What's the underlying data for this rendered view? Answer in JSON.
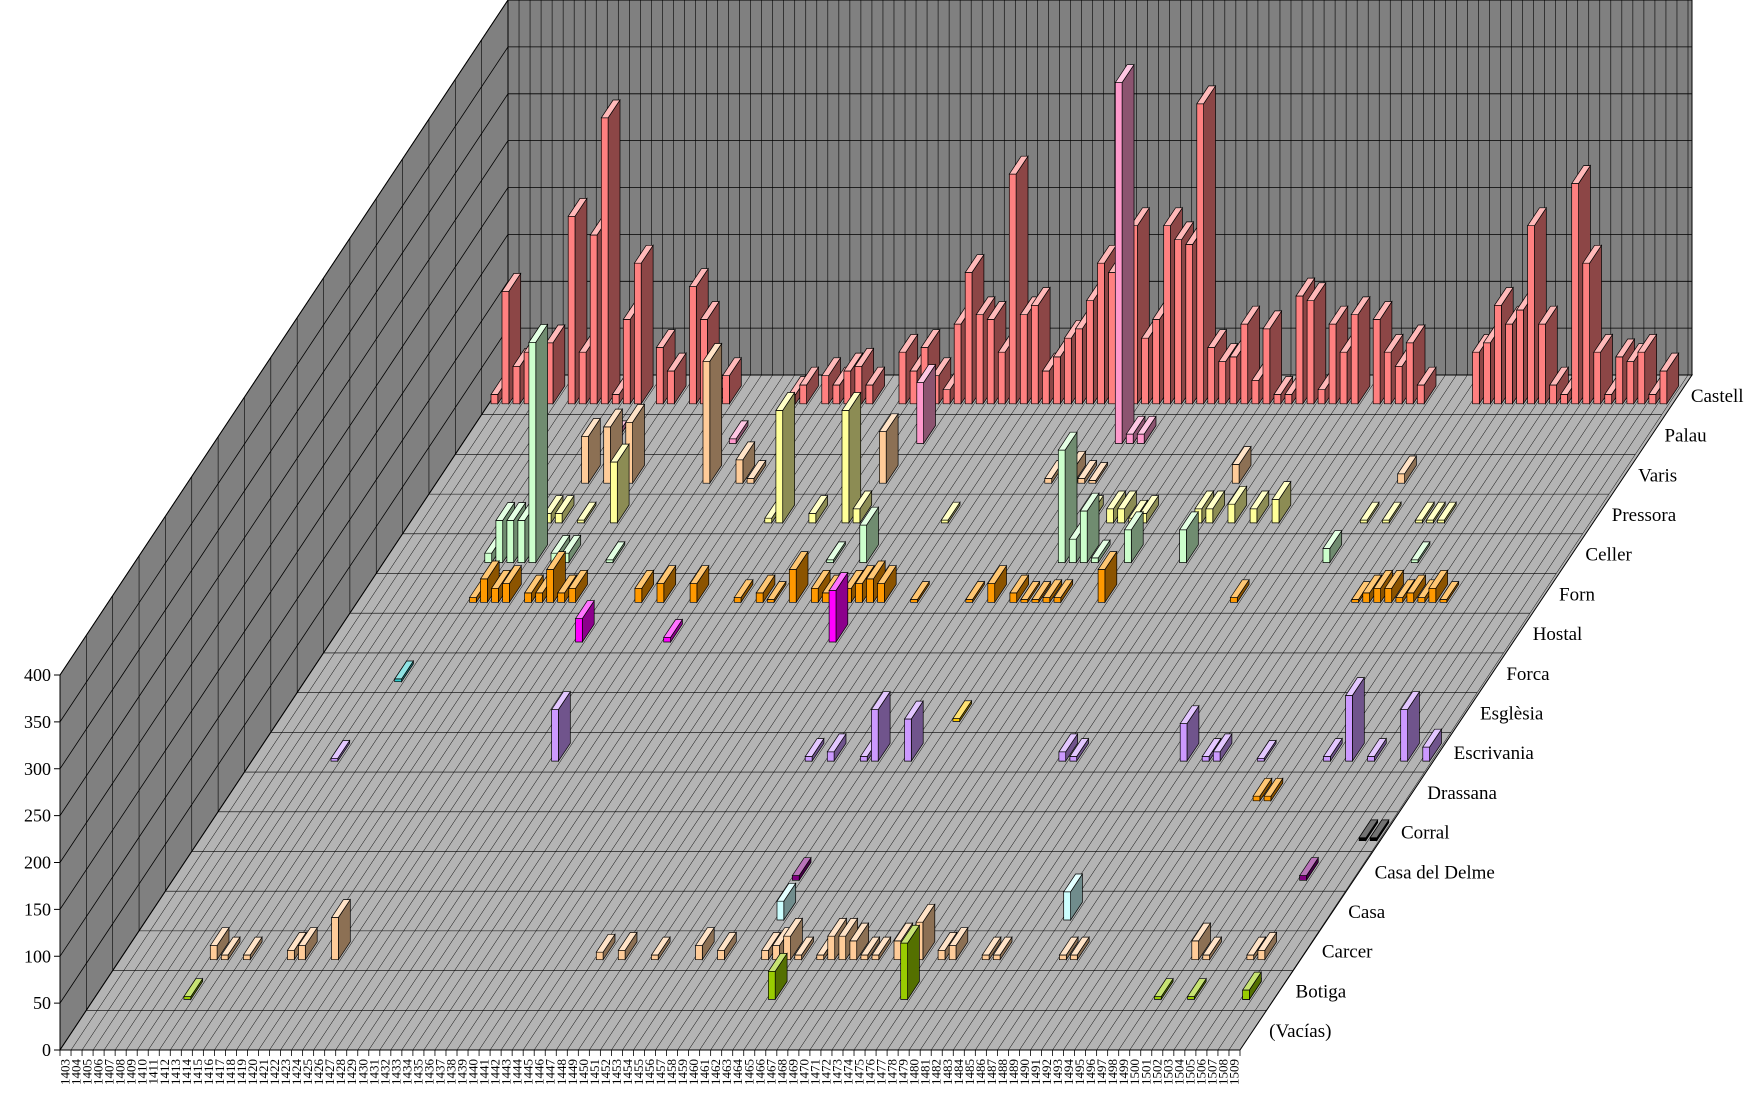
{
  "chart_data": {
    "type": "bar",
    "subtype": "3d-column",
    "title": "",
    "xlabel": "",
    "ylabel": "",
    "ylim": [
      0,
      400
    ],
    "yticks": [
      0,
      50,
      100,
      150,
      200,
      250,
      300,
      350,
      400
    ],
    "grid": true,
    "legend": "none",
    "x_start": 1403,
    "x_end": 1509,
    "x_tick_labels": [
      "1403",
      "1404",
      "1405",
      "1406",
      "1407",
      "1408",
      "1409",
      "1410",
      "1411",
      "1412",
      "1413",
      "1414",
      "1415",
      "1416",
      "1417",
      "1418",
      "1419",
      "1420",
      "1421",
      "1422",
      "1423",
      "1424",
      "1425",
      "1426",
      "1427",
      "1428",
      "1429",
      "1430",
      "1431",
      "1432",
      "1433",
      "1434",
      "1435",
      "1436",
      "1437",
      "1438",
      "1439",
      "1440",
      "1441",
      "1442",
      "1443",
      "1444",
      "1445",
      "1446",
      "1447",
      "1448",
      "1449",
      "1450",
      "1451",
      "1452",
      "1453",
      "1454",
      "1455",
      "1456",
      "1457",
      "1458",
      "1459",
      "1460",
      "1461",
      "1462",
      "1463",
      "1464",
      "1465",
      "1466",
      "1467",
      "1468",
      "1469",
      "1470",
      "1471",
      "1472",
      "1473",
      "1474",
      "1475",
      "1476",
      "1477",
      "1478",
      "1479",
      "1480",
      "1481",
      "1482",
      "1483",
      "1484",
      "1485",
      "1486",
      "1487",
      "1488",
      "1489",
      "1490",
      "1491",
      "1492",
      "1493",
      "1494",
      "1495",
      "1496",
      "1497",
      "1498",
      "1499",
      "1500",
      "1501",
      "1502",
      "1503",
      "1504",
      "1505",
      "1506",
      "1507",
      "1508",
      "1509"
    ],
    "series": [
      {
        "name": "(Vacías)",
        "color": "#c0c0c0",
        "points": []
      },
      {
        "name": "Botiga",
        "color": "#99cc00",
        "points": [
          [
            1411,
            3
          ],
          [
            1464,
            30
          ],
          [
            1476,
            60
          ],
          [
            1499,
            3
          ],
          [
            1502,
            3
          ],
          [
            1507,
            3
          ],
          [
            1507,
            10
          ]
        ]
      },
      {
        "name": "Carcer",
        "color": "#ffcc99",
        "points": [
          [
            1411,
            15
          ],
          [
            1412,
            5
          ],
          [
            1414,
            5
          ],
          [
            1418,
            10
          ],
          [
            1419,
            15
          ],
          [
            1422,
            45
          ],
          [
            1446,
            8
          ],
          [
            1448,
            10
          ],
          [
            1451,
            5
          ],
          [
            1455,
            15
          ],
          [
            1457,
            10
          ],
          [
            1461,
            10
          ],
          [
            1462,
            15
          ],
          [
            1463,
            25
          ],
          [
            1464,
            5
          ],
          [
            1466,
            5
          ],
          [
            1467,
            25
          ],
          [
            1468,
            25
          ],
          [
            1469,
            20
          ],
          [
            1470,
            5
          ],
          [
            1471,
            5
          ],
          [
            1473,
            20
          ],
          [
            1474,
            15
          ],
          [
            1475,
            40
          ],
          [
            1477,
            10
          ],
          [
            1478,
            15
          ],
          [
            1481,
            5
          ],
          [
            1482,
            5
          ],
          [
            1488,
            5
          ],
          [
            1489,
            5
          ],
          [
            1500,
            20
          ],
          [
            1501,
            5
          ],
          [
            1505,
            5
          ],
          [
            1506,
            10
          ]
        ]
      },
      {
        "name": "Casa",
        "color": "#ccffff",
        "points": [
          [
            1460,
            20
          ],
          [
            1486,
            30
          ]
        ]
      },
      {
        "name": "Casa del Delme",
        "color": "#800080",
        "points": [
          [
            1459,
            5
          ],
          [
            1505,
            5
          ]
        ]
      },
      {
        "name": "Corral",
        "color": "#000000",
        "points": [
          [
            1508,
            3
          ],
          [
            1509,
            3
          ]
        ]
      },
      {
        "name": "Drassana",
        "color": "#ff9900",
        "points": [
          [
            1496,
            5
          ],
          [
            1497,
            5
          ]
        ]
      },
      {
        "name": "Escrivania",
        "color": "#cc99ff",
        "points": [
          [
            1410,
            3
          ],
          [
            1430,
            55
          ],
          [
            1453,
            5
          ],
          [
            1455,
            10
          ],
          [
            1458,
            5
          ],
          [
            1459,
            55
          ],
          [
            1462,
            45
          ],
          [
            1476,
            10
          ],
          [
            1477,
            5
          ],
          [
            1487,
            40
          ],
          [
            1489,
            5
          ],
          [
            1490,
            10
          ],
          [
            1494,
            3
          ],
          [
            1500,
            5
          ],
          [
            1502,
            70
          ],
          [
            1504,
            5
          ],
          [
            1507,
            55
          ],
          [
            1509,
            15
          ]
        ]
      },
      {
        "name": "Esglèsia",
        "color": "#ffcc00",
        "points": [
          [
            1464,
            3
          ]
        ]
      },
      {
        "name": "Forca",
        "color": "#33cccc",
        "points": [
          [
            1411,
            3
          ]
        ]
      },
      {
        "name": "Hostal",
        "color": "#ff00ff",
        "points": [
          [
            1425,
            25
          ],
          [
            1433,
            5
          ],
          [
            1448,
            55
          ]
        ]
      },
      {
        "name": "Forn",
        "color": "#ff9900",
        "points": [
          [
            1413,
            5
          ],
          [
            1414,
            25
          ],
          [
            1415,
            15
          ],
          [
            1416,
            20
          ],
          [
            1418,
            10
          ],
          [
            1419,
            10
          ],
          [
            1420,
            35
          ],
          [
            1421,
            10
          ],
          [
            1422,
            15
          ],
          [
            1428,
            15
          ],
          [
            1430,
            20
          ],
          [
            1433,
            20
          ],
          [
            1437,
            5
          ],
          [
            1439,
            10
          ],
          [
            1440,
            3
          ],
          [
            1442,
            35
          ],
          [
            1444,
            15
          ],
          [
            1445,
            10
          ],
          [
            1447,
            15
          ],
          [
            1448,
            20
          ],
          [
            1449,
            25
          ],
          [
            1450,
            20
          ],
          [
            1453,
            3
          ],
          [
            1458,
            3
          ],
          [
            1460,
            20
          ],
          [
            1462,
            10
          ],
          [
            1463,
            3
          ],
          [
            1464,
            3
          ],
          [
            1465,
            5
          ],
          [
            1466,
            5
          ],
          [
            1470,
            35
          ],
          [
            1482,
            5
          ],
          [
            1493,
            3
          ],
          [
            1494,
            10
          ],
          [
            1495,
            15
          ],
          [
            1496,
            15
          ],
          [
            1497,
            5
          ],
          [
            1498,
            10
          ],
          [
            1499,
            5
          ],
          [
            1500,
            15
          ],
          [
            1501,
            3
          ]
        ]
      },
      {
        "name": "Celler",
        "color": "#ccffcc",
        "points": [
          [
            1412,
            10
          ],
          [
            1413,
            45
          ],
          [
            1414,
            45
          ],
          [
            1415,
            45
          ],
          [
            1416,
            235
          ],
          [
            1418,
            10
          ],
          [
            1419,
            10
          ],
          [
            1423,
            3
          ],
          [
            1443,
            3
          ],
          [
            1446,
            40
          ],
          [
            1464,
            120
          ],
          [
            1465,
            25
          ],
          [
            1466,
            55
          ],
          [
            1467,
            5
          ],
          [
            1470,
            35
          ],
          [
            1475,
            35
          ],
          [
            1488,
            15
          ],
          [
            1496,
            3
          ]
        ]
      },
      {
        "name": "Pressora",
        "color": "#ffff99",
        "points": [
          [
            1415,
            10
          ],
          [
            1416,
            10
          ],
          [
            1418,
            3
          ],
          [
            1421,
            65
          ],
          [
            1435,
            5
          ],
          [
            1436,
            120
          ],
          [
            1439,
            10
          ],
          [
            1442,
            120
          ],
          [
            1443,
            15
          ],
          [
            1451,
            3
          ],
          [
            1464,
            10
          ],
          [
            1466,
            15
          ],
          [
            1467,
            15
          ],
          [
            1468,
            5
          ],
          [
            1469,
            10
          ],
          [
            1474,
            15
          ],
          [
            1475,
            15
          ],
          [
            1477,
            20
          ],
          [
            1479,
            15
          ],
          [
            1481,
            25
          ],
          [
            1489,
            3
          ],
          [
            1491,
            3
          ],
          [
            1494,
            3
          ],
          [
            1495,
            3
          ],
          [
            1496,
            3
          ]
        ]
      },
      {
        "name": "Varis",
        "color": "#ffcc99",
        "points": [
          [
            1416,
            50
          ],
          [
            1418,
            60
          ],
          [
            1420,
            65
          ],
          [
            1427,
            130
          ],
          [
            1430,
            25
          ],
          [
            1431,
            5
          ],
          [
            1443,
            55
          ],
          [
            1458,
            5
          ],
          [
            1460,
            15
          ],
          [
            1461,
            5
          ],
          [
            1462,
            3
          ],
          [
            1475,
            20
          ],
          [
            1490,
            10
          ]
        ]
      },
      {
        "name": "Palau",
        "color": "#ff99cc",
        "points": [
          [
            1416,
            5
          ],
          [
            1427,
            5
          ],
          [
            1444,
            65
          ],
          [
            1462,
            385
          ],
          [
            1463,
            10
          ],
          [
            1464,
            10
          ]
        ]
      },
      {
        "name": "Castell",
        "color": "#ff8080",
        "points": [
          [
            1403,
            10
          ],
          [
            1404,
            120
          ],
          [
            1405,
            40
          ],
          [
            1406,
            55
          ],
          [
            1407,
            15
          ],
          [
            1408,
            65
          ],
          [
            1410,
            200
          ],
          [
            1411,
            55
          ],
          [
            1412,
            180
          ],
          [
            1413,
            305
          ],
          [
            1414,
            10
          ],
          [
            1415,
            90
          ],
          [
            1416,
            150
          ],
          [
            1418,
            60
          ],
          [
            1419,
            35
          ],
          [
            1421,
            125
          ],
          [
            1422,
            90
          ],
          [
            1423,
            10
          ],
          [
            1424,
            30
          ],
          [
            1430,
            10
          ],
          [
            1431,
            20
          ],
          [
            1433,
            30
          ],
          [
            1434,
            20
          ],
          [
            1435,
            35
          ],
          [
            1436,
            40
          ],
          [
            1437,
            20
          ],
          [
            1440,
            55
          ],
          [
            1441,
            35
          ],
          [
            1442,
            60
          ],
          [
            1443,
            30
          ],
          [
            1444,
            15
          ],
          [
            1445,
            85
          ],
          [
            1446,
            140
          ],
          [
            1447,
            95
          ],
          [
            1448,
            90
          ],
          [
            1449,
            55
          ],
          [
            1450,
            245
          ],
          [
            1451,
            95
          ],
          [
            1452,
            105
          ],
          [
            1453,
            35
          ],
          [
            1454,
            50
          ],
          [
            1455,
            70
          ],
          [
            1456,
            80
          ],
          [
            1457,
            110
          ],
          [
            1458,
            150
          ],
          [
            1459,
            140
          ],
          [
            1460,
            40
          ],
          [
            1461,
            190
          ],
          [
            1462,
            70
          ],
          [
            1463,
            90
          ],
          [
            1464,
            190
          ],
          [
            1465,
            175
          ],
          [
            1466,
            170
          ],
          [
            1467,
            320
          ],
          [
            1468,
            60
          ],
          [
            1469,
            45
          ],
          [
            1470,
            50
          ],
          [
            1471,
            85
          ],
          [
            1472,
            25
          ],
          [
            1473,
            80
          ],
          [
            1474,
            10
          ],
          [
            1475,
            10
          ],
          [
            1476,
            115
          ],
          [
            1477,
            110
          ],
          [
            1478,
            15
          ],
          [
            1479,
            85
          ],
          [
            1480,
            55
          ],
          [
            1481,
            95
          ],
          [
            1483,
            90
          ],
          [
            1484,
            55
          ],
          [
            1485,
            40
          ],
          [
            1486,
            65
          ],
          [
            1487,
            20
          ],
          [
            1492,
            55
          ],
          [
            1493,
            65
          ],
          [
            1494,
            105
          ],
          [
            1495,
            85
          ],
          [
            1496,
            100
          ],
          [
            1497,
            190
          ],
          [
            1498,
            85
          ],
          [
            1499,
            20
          ],
          [
            1500,
            10
          ],
          [
            1501,
            235
          ],
          [
            1502,
            150
          ],
          [
            1503,
            55
          ],
          [
            1504,
            10
          ],
          [
            1505,
            50
          ],
          [
            1506,
            45
          ],
          [
            1507,
            55
          ],
          [
            1508,
            10
          ],
          [
            1509,
            35
          ]
        ]
      }
    ]
  }
}
